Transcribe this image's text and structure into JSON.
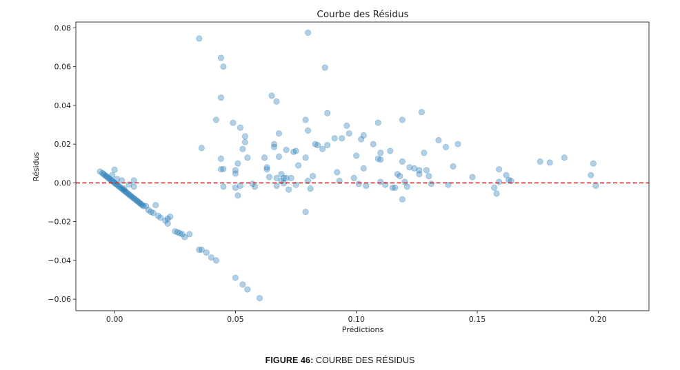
{
  "caption": {
    "prefix": "FIGURE 46:",
    "text": " COURBE DES RÉSIDUS"
  },
  "chart_data": {
    "type": "scatter",
    "title": "Courbe des Résidus",
    "xlabel": "Prédictions",
    "ylabel": "Résidus",
    "xlim": [
      -0.016,
      0.221
    ],
    "ylim": [
      -0.066,
      0.083
    ],
    "xticks": [
      0.0,
      0.05,
      0.1,
      0.15,
      0.2
    ],
    "xtick_labels": [
      "0.00",
      "0.05",
      "0.10",
      "0.15",
      "0.20"
    ],
    "yticks": [
      -0.06,
      -0.04,
      -0.02,
      0.0,
      0.02,
      0.04,
      0.06,
      0.08
    ],
    "ytick_labels": [
      "−0.06",
      "−0.04",
      "−0.02",
      "0.00",
      "0.02",
      "0.04",
      "0.06",
      "0.08"
    ],
    "grid": false,
    "point_color": "#1f77b4",
    "point_alpha": 0.35,
    "reference_line": {
      "y": 0.0,
      "color": "#d62728",
      "style": "dashed"
    },
    "points": [
      [
        -0.006,
        0.0058
      ],
      [
        -0.005,
        0.005
      ],
      [
        -0.0045,
        0.0045
      ],
      [
        -0.004,
        0.004
      ],
      [
        -0.0035,
        0.0035
      ],
      [
        -0.003,
        0.003
      ],
      [
        -0.0025,
        0.0025
      ],
      [
        -0.002,
        0.002
      ],
      [
        -0.0015,
        0.0015
      ],
      [
        -0.001,
        0.001
      ],
      [
        -0.0005,
        0.0005
      ],
      [
        0.0,
        0.0
      ],
      [
        0.0005,
        -0.0005
      ],
      [
        0.001,
        -0.001
      ],
      [
        0.0015,
        -0.0015
      ],
      [
        0.002,
        -0.002
      ],
      [
        0.0025,
        -0.0025
      ],
      [
        0.003,
        -0.003
      ],
      [
        0.0035,
        -0.0035
      ],
      [
        0.004,
        -0.004
      ],
      [
        0.0045,
        -0.0045
      ],
      [
        0.005,
        -0.005
      ],
      [
        0.0055,
        -0.0055
      ],
      [
        0.006,
        -0.006
      ],
      [
        0.0065,
        -0.0065
      ],
      [
        0.007,
        -0.007
      ],
      [
        0.0075,
        -0.0075
      ],
      [
        0.008,
        -0.008
      ],
      [
        0.0085,
        -0.0085
      ],
      [
        0.009,
        -0.009
      ],
      [
        0.0095,
        -0.0095
      ],
      [
        0.01,
        -0.01
      ],
      [
        0.0105,
        -0.0105
      ],
      [
        0.011,
        -0.011
      ],
      [
        0.0115,
        -0.0115
      ],
      [
        0.012,
        -0.012
      ],
      [
        0.013,
        -0.012
      ],
      [
        0.0,
        0.0068
      ],
      [
        0.003,
        0.0012
      ],
      [
        0.006,
        -0.0008
      ],
      [
        0.008,
        0.0012
      ],
      [
        0.008,
        -0.002
      ],
      [
        0.004,
        -0.003
      ],
      [
        0.001,
        0.002
      ],
      [
        -0.001,
        0.004
      ],
      [
        0.014,
        -0.014
      ],
      [
        0.015,
        -0.015
      ],
      [
        0.016,
        -0.0155
      ],
      [
        0.017,
        -0.0115
      ],
      [
        0.018,
        -0.017
      ],
      [
        0.019,
        -0.018
      ],
      [
        0.021,
        -0.0195
      ],
      [
        0.022,
        -0.021
      ],
      [
        0.022,
        -0.0185
      ],
      [
        0.023,
        -0.0175
      ],
      [
        0.025,
        -0.025
      ],
      [
        0.026,
        -0.0255
      ],
      [
        0.027,
        -0.026
      ],
      [
        0.028,
        -0.0265
      ],
      [
        0.029,
        -0.028
      ],
      [
        0.031,
        -0.0265
      ],
      [
        0.035,
        -0.0345
      ],
      [
        0.036,
        -0.0345
      ],
      [
        0.038,
        -0.036
      ],
      [
        0.04,
        -0.0385
      ],
      [
        0.042,
        -0.04
      ],
      [
        0.05,
        -0.049
      ],
      [
        0.053,
        -0.0525
      ],
      [
        0.055,
        -0.055
      ],
      [
        0.06,
        -0.0595
      ],
      [
        0.035,
        0.0745
      ],
      [
        0.036,
        0.018
      ],
      [
        0.042,
        0.0325
      ],
      [
        0.044,
        0.0645
      ],
      [
        0.045,
        0.06
      ],
      [
        0.044,
        0.044
      ],
      [
        0.044,
        0.0125
      ],
      [
        0.044,
        0.007
      ],
      [
        0.045,
        0.0072
      ],
      [
        0.045,
        -0.002
      ],
      [
        0.049,
        0.031
      ],
      [
        0.05,
        0.0065
      ],
      [
        0.05,
        0.0048
      ],
      [
        0.05,
        -0.0025
      ],
      [
        0.051,
        -0.0065
      ],
      [
        0.051,
        0.01
      ],
      [
        0.052,
        0.0285
      ],
      [
        0.052,
        -0.0015
      ],
      [
        0.053,
        0.0175
      ],
      [
        0.054,
        0.024
      ],
      [
        0.054,
        0.021
      ],
      [
        0.055,
        0.013
      ],
      [
        0.057,
        -0.0005
      ],
      [
        0.058,
        -0.002
      ],
      [
        0.062,
        0.013
      ],
      [
        0.063,
        0.008
      ],
      [
        0.063,
        0.007
      ],
      [
        0.064,
        0.003
      ],
      [
        0.065,
        0.045
      ],
      [
        0.066,
        0.0185
      ],
      [
        0.066,
        0.02
      ],
      [
        0.067,
        0.042
      ],
      [
        0.067,
        0.0025
      ],
      [
        0.067,
        -0.0015
      ],
      [
        0.068,
        0.0255
      ],
      [
        0.068,
        0.0135
      ],
      [
        0.069,
        0.0045
      ],
      [
        0.069,
        0.001
      ],
      [
        0.07,
        0.0025
      ],
      [
        0.07,
        -0.0002
      ],
      [
        0.071,
        0.0025
      ],
      [
        0.071,
        0.017
      ],
      [
        0.072,
        -0.0035
      ],
      [
        0.073,
        0.0025
      ],
      [
        0.074,
        0.016
      ],
      [
        0.075,
        0.0165
      ],
      [
        0.075,
        -0.001
      ],
      [
        0.076,
        0.009
      ],
      [
        0.079,
        0.0325
      ],
      [
        0.079,
        0.013
      ],
      [
        0.079,
        -0.015
      ],
      [
        0.08,
        0.0775
      ],
      [
        0.08,
        0.027
      ],
      [
        0.08,
        0.001
      ],
      [
        0.081,
        -0.003
      ],
      [
        0.082,
        0.0035
      ],
      [
        0.083,
        0.02
      ],
      [
        0.084,
        0.0195
      ],
      [
        0.086,
        0.0175
      ],
      [
        0.087,
        0.0595
      ],
      [
        0.088,
        0.0195
      ],
      [
        0.088,
        0.036
      ],
      [
        0.091,
        0.023
      ],
      [
        0.092,
        0.0055
      ],
      [
        0.093,
        0.001
      ],
      [
        0.094,
        0.023
      ],
      [
        0.096,
        0.0295
      ],
      [
        0.097,
        0.0255
      ],
      [
        0.099,
        0.0025
      ],
      [
        0.1,
        0.014
      ],
      [
        0.101,
        -0.0005
      ],
      [
        0.102,
        0.0225
      ],
      [
        0.103,
        0.0245
      ],
      [
        0.103,
        0.0075
      ],
      [
        0.104,
        -0.0015
      ],
      [
        0.107,
        0.02
      ],
      [
        0.109,
        0.0125
      ],
      [
        0.109,
        0.031
      ],
      [
        0.11,
        0.0155
      ],
      [
        0.11,
        0.012
      ],
      [
        0.11,
        0.0005
      ],
      [
        0.112,
        -0.001
      ],
      [
        0.114,
        0.0165
      ],
      [
        0.115,
        -0.0025
      ],
      [
        0.116,
        -0.0025
      ],
      [
        0.117,
        0.0045
      ],
      [
        0.118,
        0.0035
      ],
      [
        0.119,
        0.011
      ],
      [
        0.119,
        0.0325
      ],
      [
        0.119,
        -0.0085
      ],
      [
        0.12,
        0.0005
      ],
      [
        0.121,
        -0.002
      ],
      [
        0.122,
        0.008
      ],
      [
        0.124,
        0.0075
      ],
      [
        0.126,
        0.0045
      ],
      [
        0.126,
        0.0065
      ],
      [
        0.127,
        0.0365
      ],
      [
        0.128,
        0.0155
      ],
      [
        0.129,
        0.0065
      ],
      [
        0.13,
        0.0035
      ],
      [
        0.131,
        -0.0005
      ],
      [
        0.134,
        0.022
      ],
      [
        0.137,
        0.0185
      ],
      [
        0.138,
        -0.001
      ],
      [
        0.14,
        0.0085
      ],
      [
        0.142,
        0.02
      ],
      [
        0.148,
        0.003
      ],
      [
        0.157,
        -0.0025
      ],
      [
        0.158,
        -0.0055
      ],
      [
        0.159,
        0.007
      ],
      [
        0.159,
        0.0005
      ],
      [
        0.162,
        0.004
      ],
      [
        0.163,
        0.0015
      ],
      [
        0.164,
        0.001
      ],
      [
        0.176,
        0.011
      ],
      [
        0.18,
        0.0105
      ],
      [
        0.186,
        0.013
      ],
      [
        0.197,
        0.004
      ],
      [
        0.198,
        0.01
      ],
      [
        0.199,
        -0.0015
      ]
    ]
  }
}
